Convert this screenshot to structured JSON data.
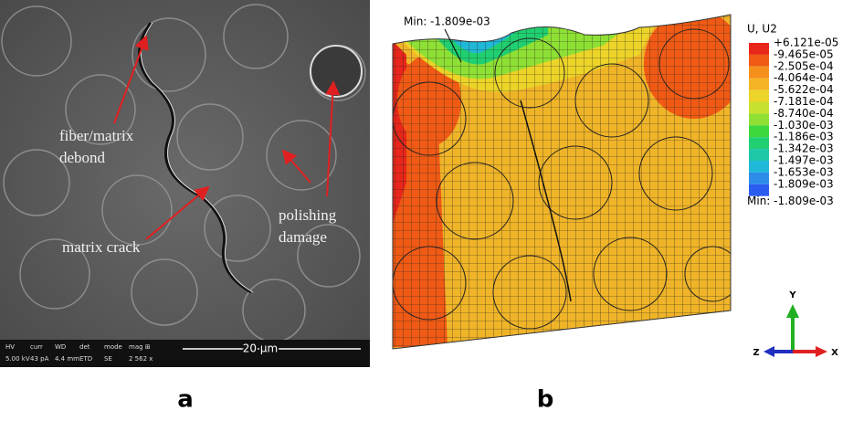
{
  "panel_a": {
    "label": "a",
    "annotations": [
      [
        "fiber/matrix",
        "debond"
      ],
      [
        "matrix crack"
      ],
      [
        "polishing",
        "damage"
      ]
    ],
    "info_bar": {
      "headers": [
        "HV",
        "curr",
        "WD",
        "det",
        "mode",
        "mag ⊞"
      ],
      "values": [
        "5.00 kV",
        "43 pA",
        "4.4 mm",
        "ETD",
        "SE",
        "2 562 x"
      ]
    },
    "scale_bar": "20 µm"
  },
  "panel_b": {
    "label": "b",
    "min_marker": "Min: -1.809e-03",
    "legend": {
      "title": "U, U2",
      "values": [
        "+6.121e-05",
        "-9.465e-05",
        "-2.505e-04",
        "-4.064e-04",
        "-5.622e-04",
        "-7.181e-04",
        "-8.740e-04",
        "-1.030e-03",
        "-1.186e-03",
        "-1.342e-03",
        "-1.497e-03",
        "-1.653e-03",
        "-1.809e-03"
      ],
      "colors": [
        "#e8261a",
        "#f05a14",
        "#f5901c",
        "#f5b424",
        "#ecd428",
        "#c8e030",
        "#8ee034",
        "#3cd83c",
        "#20d070",
        "#1cc8a8",
        "#20b8d8",
        "#2c8ce8",
        "#2a5cf0"
      ],
      "footer": "Min: -1.809e-03"
    },
    "axes": [
      "Y",
      "Z",
      "X"
    ]
  }
}
